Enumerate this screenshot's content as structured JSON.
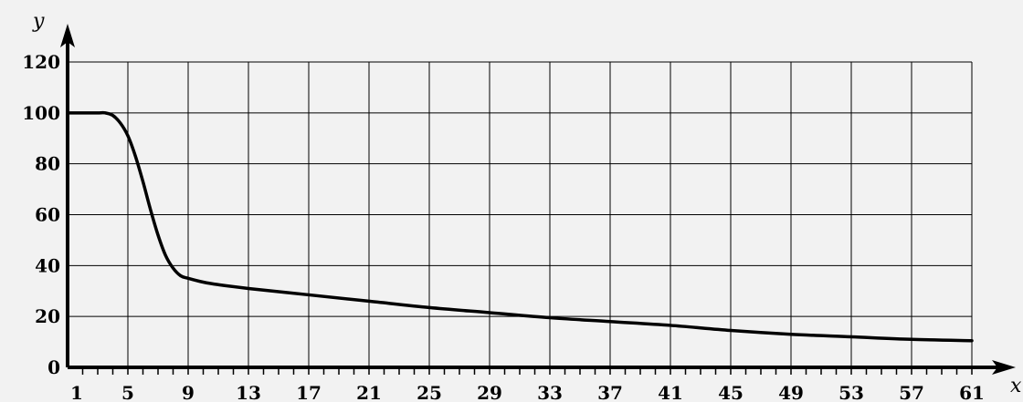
{
  "chart_data": {
    "type": "line",
    "title": "",
    "xlabel": "x",
    "ylabel": "y",
    "xlim": [
      1,
      61
    ],
    "ylim": [
      0,
      120
    ],
    "grid": true,
    "x_ticks": [
      1,
      5,
      9,
      13,
      17,
      21,
      25,
      29,
      33,
      37,
      41,
      45,
      49,
      53,
      57,
      61
    ],
    "y_ticks": [
      0,
      20,
      40,
      60,
      80,
      100,
      120
    ],
    "x_tick_labels": [
      "1",
      "5",
      "9",
      "13",
      "17",
      "21",
      "25",
      "29",
      "33",
      "37",
      "41",
      "45",
      "49",
      "53",
      "57",
      "61"
    ],
    "y_tick_labels": [
      "0",
      "20",
      "40",
      "60",
      "80",
      "100",
      "120"
    ],
    "series": [
      {
        "x": [
          1,
          2,
          3,
          3.5,
          4,
          4.5,
          5,
          5.5,
          6,
          6.5,
          7,
          7.5,
          8,
          8.5,
          9,
          10,
          11,
          13,
          17,
          21,
          25,
          29,
          33,
          37,
          41,
          45,
          49,
          53,
          57,
          61
        ],
        "y": [
          100,
          100,
          100,
          100,
          99,
          96,
          91,
          83,
          73,
          62,
          52,
          44,
          39,
          36,
          35,
          33.5,
          32.5,
          31,
          28.5,
          26,
          23.5,
          21.5,
          19.5,
          18,
          16.5,
          14.5,
          13,
          12,
          11,
          10.5
        ]
      }
    ]
  }
}
